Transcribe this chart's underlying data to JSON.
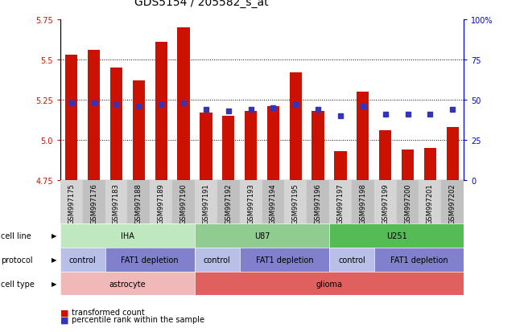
{
  "title": "GDS5154 / 205582_s_at",
  "samples": [
    "GSM997175",
    "GSM997176",
    "GSM997183",
    "GSM997188",
    "GSM997189",
    "GSM997190",
    "GSM997191",
    "GSM997192",
    "GSM997193",
    "GSM997194",
    "GSM997195",
    "GSM997196",
    "GSM997197",
    "GSM997198",
    "GSM997199",
    "GSM997200",
    "GSM997201",
    "GSM997202"
  ],
  "transformed_count": [
    5.53,
    5.56,
    5.45,
    5.37,
    5.61,
    5.7,
    5.17,
    5.15,
    5.18,
    5.21,
    5.42,
    5.18,
    4.93,
    5.3,
    5.06,
    4.94,
    4.95,
    5.08
  ],
  "percentile_rank": [
    48,
    48,
    47,
    46,
    47,
    48,
    44,
    43,
    44,
    45,
    47,
    44,
    40,
    46,
    41,
    41,
    41,
    44
  ],
  "ymin": 4.75,
  "ymax": 5.75,
  "yticks_left": [
    4.75,
    5.0,
    5.25,
    5.5,
    5.75
  ],
  "yticks_right": [
    0,
    25,
    50,
    75,
    100
  ],
  "bar_color": "#cc1100",
  "dot_color": "#3333bb",
  "bar_width": 0.55,
  "cell_line_groups": [
    {
      "label": "IHA",
      "start": 0,
      "end": 5,
      "color": "#c0e8c0"
    },
    {
      "label": "U87",
      "start": 6,
      "end": 11,
      "color": "#90cc90"
    },
    {
      "label": "U251",
      "start": 12,
      "end": 17,
      "color": "#55bb55"
    }
  ],
  "protocol_groups": [
    {
      "label": "control",
      "start": 0,
      "end": 1,
      "color": "#b8c0e8"
    },
    {
      "label": "FAT1 depletion",
      "start": 2,
      "end": 5,
      "color": "#8080cc"
    },
    {
      "label": "control",
      "start": 6,
      "end": 7,
      "color": "#b8c0e8"
    },
    {
      "label": "FAT1 depletion",
      "start": 8,
      "end": 11,
      "color": "#8080cc"
    },
    {
      "label": "control",
      "start": 12,
      "end": 13,
      "color": "#b8c0e8"
    },
    {
      "label": "FAT1 depletion",
      "start": 14,
      "end": 17,
      "color": "#8080cc"
    }
  ],
  "cell_type_groups": [
    {
      "label": "astrocyte",
      "start": 0,
      "end": 5,
      "color": "#f0b8b8"
    },
    {
      "label": "glioma",
      "start": 6,
      "end": 17,
      "color": "#e06060"
    }
  ],
  "row_labels": [
    "cell line",
    "protocol",
    "cell type"
  ],
  "xtick_bg_light": "#d4d4d4",
  "xtick_bg_dark": "#c0c0c0",
  "plot_bg": "#ffffff",
  "title_fontsize": 10,
  "label_fontsize": 7,
  "tick_fontsize": 7,
  "sample_fontsize": 6
}
